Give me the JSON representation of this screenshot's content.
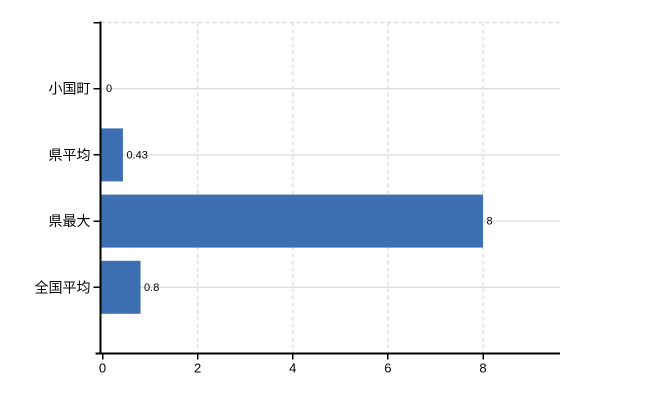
{
  "chart_data": {
    "type": "bar",
    "orientation": "horizontal",
    "title": "",
    "xlabel": "",
    "ylabel": "",
    "categories": [
      "小国町",
      "県平均",
      "県最大",
      "全国平均"
    ],
    "values": [
      0,
      0.43,
      8,
      0.8
    ],
    "value_labels": [
      "0",
      "0.43",
      "8",
      "0.8"
    ],
    "x_ticks": [
      0,
      2,
      4,
      6,
      8
    ],
    "x_tick_labels": [
      "0",
      "2",
      "4",
      "6",
      "8"
    ],
    "xlim": [
      0,
      9.6
    ],
    "grid": true,
    "legend": false,
    "colors": {
      "bar": "#3D6FB3",
      "gridline": "#D9DFD4",
      "top_border": "#D8D7DA",
      "axis": "#000000",
      "text": "#000000"
    }
  }
}
